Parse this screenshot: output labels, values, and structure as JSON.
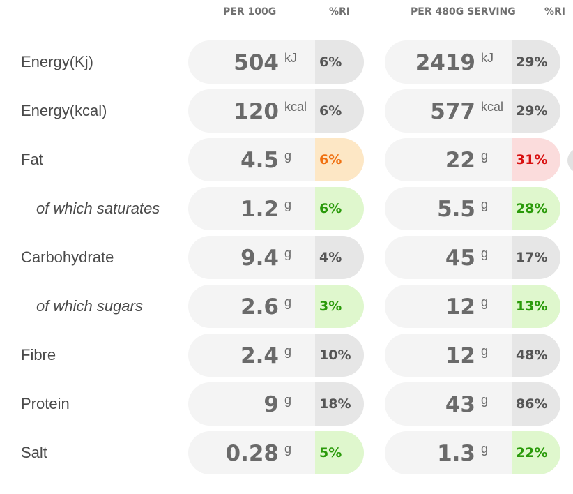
{
  "headers": {
    "per100": "PER 100G",
    "ri100": "%RI",
    "perServing": "PER 480G SERVING",
    "riServing": "%RI"
  },
  "rows": [
    {
      "label": "Energy(Kj)",
      "sub": false,
      "v100": "504",
      "u100": "kJ",
      "ri100": "6%",
      "c100": "neutral",
      "vserv": "2419",
      "userv": "kJ",
      "riserv": "29%",
      "cserv": "neutral"
    },
    {
      "label": "Energy(kcal)",
      "sub": false,
      "v100": "120",
      "u100": "kcal",
      "ri100": "6%",
      "c100": "neutral",
      "vserv": "577",
      "userv": "kcal",
      "riserv": "29%",
      "cserv": "neutral"
    },
    {
      "label": "Fat",
      "sub": false,
      "v100": "4.5",
      "u100": "g",
      "ri100": "6%",
      "c100": "amber",
      "vserv": "22",
      "userv": "g",
      "riserv": "31%",
      "cserv": "red"
    },
    {
      "label": "of which saturates",
      "sub": true,
      "v100": "1.2",
      "u100": "g",
      "ri100": "6%",
      "c100": "green",
      "vserv": "5.5",
      "userv": "g",
      "riserv": "28%",
      "cserv": "green"
    },
    {
      "label": "Carbohydrate",
      "sub": false,
      "v100": "9.4",
      "u100": "g",
      "ri100": "4%",
      "c100": "neutral",
      "vserv": "45",
      "userv": "g",
      "riserv": "17%",
      "cserv": "neutral"
    },
    {
      "label": "of which sugars",
      "sub": true,
      "v100": "2.6",
      "u100": "g",
      "ri100": "3%",
      "c100": "green",
      "vserv": "12",
      "userv": "g",
      "riserv": "13%",
      "cserv": "green"
    },
    {
      "label": "Fibre",
      "sub": false,
      "v100": "2.4",
      "u100": "g",
      "ri100": "10%",
      "c100": "neutral",
      "vserv": "12",
      "userv": "g",
      "riserv": "48%",
      "cserv": "neutral"
    },
    {
      "label": "Protein",
      "sub": false,
      "v100": "9",
      "u100": "g",
      "ri100": "18%",
      "c100": "neutral",
      "vserv": "43",
      "userv": "g",
      "riserv": "86%",
      "cserv": "neutral"
    },
    {
      "label": "Salt",
      "sub": false,
      "v100": "0.28",
      "u100": "g",
      "ri100": "5%",
      "c100": "green",
      "vserv": "1.3",
      "userv": "g",
      "riserv": "22%",
      "cserv": "green"
    }
  ],
  "colors": {
    "neutral": "#e6e6e6",
    "green": "#dff7cd",
    "amber": "#fde7c5",
    "red": "#fbdcdc"
  }
}
